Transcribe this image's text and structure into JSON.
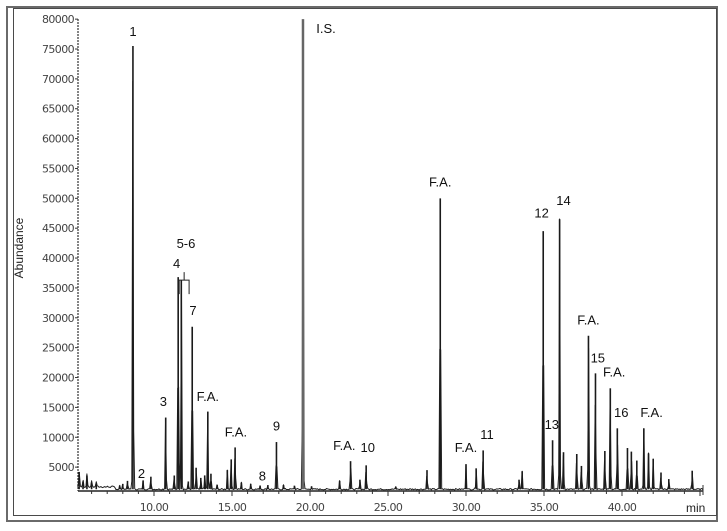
{
  "chart_data": {
    "type": "line",
    "title": "",
    "xlabel": "min",
    "ylabel": "Abundance",
    "xlim": [
      5.1,
      45.2
    ],
    "ylim": [
      0,
      80000
    ],
    "grid": false,
    "legend": null,
    "x_ticks": [
      10,
      15,
      20,
      25,
      30,
      35,
      40
    ],
    "x_tick_labels": [
      "10.00",
      "15.00",
      "20.00",
      "25.00",
      "30.00",
      "35.00",
      "40.00"
    ],
    "y_ticks": [
      5000,
      10000,
      15000,
      20000,
      25000,
      30000,
      35000,
      40000,
      45000,
      50000,
      55000,
      60000,
      65000,
      70000,
      75000,
      80000
    ],
    "y_tick_labels": [
      "5000",
      "10000",
      "15000",
      "20000",
      "25000",
      "30000",
      "35000",
      "40000",
      "45000",
      "50000",
      "55000",
      "60000",
      "65000",
      "70000",
      "75000",
      "80000"
    ],
    "baseline": 1300,
    "peaks": [
      {
        "x": 5.2,
        "y": 4200
      },
      {
        "x": 5.45,
        "y": 2600
      },
      {
        "x": 5.7,
        "y": 3600
      },
      {
        "x": 6.0,
        "y": 2400
      },
      {
        "x": 6.3,
        "y": 2200
      },
      {
        "x": 7.8,
        "y": 1900
      },
      {
        "x": 8.0,
        "y": 2200
      },
      {
        "x": 8.3,
        "y": 2700
      },
      {
        "x": 8.65,
        "y": 75500
      },
      {
        "x": 9.3,
        "y": 2700
      },
      {
        "x": 9.8,
        "y": 3400
      },
      {
        "x": 10.75,
        "y": 13300
      },
      {
        "x": 11.3,
        "y": 3600
      },
      {
        "x": 11.55,
        "y": 36800
      },
      {
        "x": 11.75,
        "y": 36300
      },
      {
        "x": 12.2,
        "y": 2600
      },
      {
        "x": 12.45,
        "y": 28500
      },
      {
        "x": 12.7,
        "y": 4900
      },
      {
        "x": 13.0,
        "y": 3200
      },
      {
        "x": 13.25,
        "y": 3600
      },
      {
        "x": 13.45,
        "y": 14300
      },
      {
        "x": 13.65,
        "y": 3900
      },
      {
        "x": 14.05,
        "y": 2000
      },
      {
        "x": 14.7,
        "y": 4500
      },
      {
        "x": 14.95,
        "y": 6300
      },
      {
        "x": 15.2,
        "y": 8300
      },
      {
        "x": 15.6,
        "y": 2400
      },
      {
        "x": 16.2,
        "y": 2200
      },
      {
        "x": 16.8,
        "y": 1900
      },
      {
        "x": 17.3,
        "y": 2000
      },
      {
        "x": 17.85,
        "y": 9200
      },
      {
        "x": 18.3,
        "y": 2000
      },
      {
        "x": 19.0,
        "y": 1900
      },
      {
        "x": 19.55,
        "y": 80000
      },
      {
        "x": 20.1,
        "y": 1800
      },
      {
        "x": 21.9,
        "y": 2700
      },
      {
        "x": 22.6,
        "y": 6000
      },
      {
        "x": 23.2,
        "y": 2900
      },
      {
        "x": 23.6,
        "y": 5300
      },
      {
        "x": 25.5,
        "y": 1700
      },
      {
        "x": 27.5,
        "y": 4500
      },
      {
        "x": 28.35,
        "y": 50000
      },
      {
        "x": 30.0,
        "y": 5500
      },
      {
        "x": 30.65,
        "y": 4800
      },
      {
        "x": 31.1,
        "y": 7800
      },
      {
        "x": 33.4,
        "y": 2900
      },
      {
        "x": 33.6,
        "y": 4300
      },
      {
        "x": 34.95,
        "y": 44500
      },
      {
        "x": 35.55,
        "y": 9500
      },
      {
        "x": 36.0,
        "y": 46500
      },
      {
        "x": 36.25,
        "y": 7500
      },
      {
        "x": 37.1,
        "y": 7200
      },
      {
        "x": 37.4,
        "y": 5200
      },
      {
        "x": 37.85,
        "y": 27000
      },
      {
        "x": 38.3,
        "y": 20700
      },
      {
        "x": 38.9,
        "y": 7700
      },
      {
        "x": 39.25,
        "y": 18200
      },
      {
        "x": 39.7,
        "y": 11500
      },
      {
        "x": 40.35,
        "y": 8200
      },
      {
        "x": 40.6,
        "y": 7600
      },
      {
        "x": 40.95,
        "y": 6100
      },
      {
        "x": 41.4,
        "y": 11500
      },
      {
        "x": 41.7,
        "y": 7300
      },
      {
        "x": 42.0,
        "y": 6400
      },
      {
        "x": 42.5,
        "y": 4100
      },
      {
        "x": 43.0,
        "y": 3000
      },
      {
        "x": 44.5,
        "y": 4400
      }
    ],
    "annotations": [
      {
        "label": "1",
        "x": 8.65,
        "y": 77200
      },
      {
        "label": "2",
        "x": 9.2,
        "y": 3200
      },
      {
        "label": "3",
        "x": 10.6,
        "y": 15200
      },
      {
        "label": "4",
        "x": 11.45,
        "y": 38300
      },
      {
        "label": "5-6",
        "x": 12.05,
        "y": 41700
      },
      {
        "label": "7",
        "x": 12.5,
        "y": 30500
      },
      {
        "label": "F.A.",
        "x": 13.45,
        "y": 16100
      },
      {
        "label": "F.A.",
        "x": 15.25,
        "y": 10100
      },
      {
        "label": "8",
        "x": 16.95,
        "y": 2800
      },
      {
        "label": "9",
        "x": 17.85,
        "y": 11100
      },
      {
        "label": "I.S.",
        "x": 20.4,
        "y": 77700
      },
      {
        "label": "F.A.",
        "x": 22.2,
        "y": 7900
      },
      {
        "label": "10",
        "x": 23.7,
        "y": 7500
      },
      {
        "label": "F.A.",
        "x": 28.35,
        "y": 52000
      },
      {
        "label": "F.A.",
        "x": 30.0,
        "y": 7500
      },
      {
        "label": "11",
        "x": 31.35,
        "y": 9700
      },
      {
        "label": "12",
        "x": 34.85,
        "y": 46800
      },
      {
        "label": "13",
        "x": 35.5,
        "y": 11400
      },
      {
        "label": "14",
        "x": 36.25,
        "y": 48900
      },
      {
        "label": "F.A.",
        "x": 37.85,
        "y": 28900
      },
      {
        "label": "15",
        "x": 38.45,
        "y": 22500
      },
      {
        "label": "F.A.",
        "x": 39.5,
        "y": 20200
      },
      {
        "label": "16",
        "x": 39.95,
        "y": 13400
      },
      {
        "label": "F.A.",
        "x": 41.9,
        "y": 13400
      }
    ]
  }
}
